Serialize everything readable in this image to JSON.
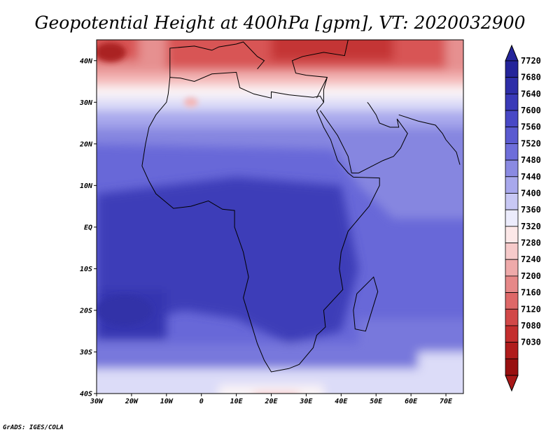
{
  "title": "Geopotential Height at 400hPa [gpm], VT: 2020032900",
  "credit": "GrADS: IGES/COLA",
  "map": {
    "lon_range": [
      -30,
      75
    ],
    "lat_range": [
      -40,
      45
    ],
    "x_ticks": [
      {
        "lon": -30,
        "label": "30W"
      },
      {
        "lon": -20,
        "label": "20W"
      },
      {
        "lon": -10,
        "label": "10W"
      },
      {
        "lon": 0,
        "label": "0"
      },
      {
        "lon": 10,
        "label": "10E"
      },
      {
        "lon": 20,
        "label": "20E"
      },
      {
        "lon": 30,
        "label": "30E"
      },
      {
        "lon": 40,
        "label": "40E"
      },
      {
        "lon": 50,
        "label": "50E"
      },
      {
        "lon": 60,
        "label": "60E"
      },
      {
        "lon": 70,
        "label": "70E"
      }
    ],
    "y_ticks": [
      {
        "lat": 40,
        "label": "40N"
      },
      {
        "lat": 30,
        "label": "30N"
      },
      {
        "lat": 20,
        "label": "20N"
      },
      {
        "lat": 10,
        "label": "10N"
      },
      {
        "lat": 0,
        "label": "EQ"
      },
      {
        "lat": -10,
        "label": "10S"
      },
      {
        "lat": -20,
        "label": "20S"
      },
      {
        "lat": -30,
        "label": "30S"
      },
      {
        "lat": -40,
        "label": "40S"
      }
    ]
  },
  "colorbar": {
    "levels": [
      "7720",
      "7680",
      "7640",
      "7600",
      "7560",
      "7520",
      "7480",
      "7440",
      "7400",
      "7360",
      "7320",
      "7280",
      "7240",
      "7200",
      "7160",
      "7120",
      "7080",
      "7030"
    ],
    "colors": [
      "#24249a",
      "#2e2ea8",
      "#3a3ab8",
      "#4848c6",
      "#5a5ad0",
      "#6e6eda",
      "#8a8ae2",
      "#a8a8ec",
      "#c8c8f4",
      "#ececfc",
      "#fce8e8",
      "#f6caca",
      "#eeaaaa",
      "#e68888",
      "#de6868",
      "#d24848",
      "#c42e2e",
      "#b01c1c",
      "#981010"
    ],
    "top_color": "#24249a",
    "bottom_color": "#a81818"
  },
  "field": {
    "color_base": "#6868d8",
    "color_deep": "#3c3cb8",
    "color_ne": "#8686e0",
    "color_south": "#7878dc",
    "color_pale": "#dcdcf8",
    "color_white": "#fbf4f6",
    "color_pink": "#f4b8b8",
    "color_rose": "#e69090",
    "color_red": "#d85454",
    "color_core": "#c43434",
    "color_deep_red": "#aa2222"
  }
}
